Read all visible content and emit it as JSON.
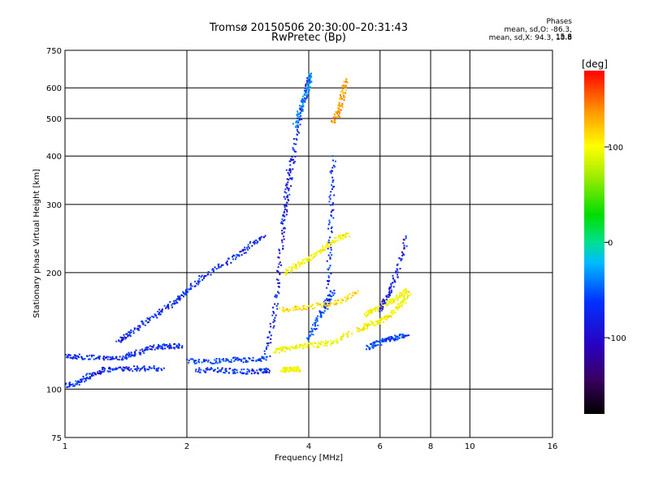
{
  "header": {
    "title": "Tromsø 20150506 20:30:00–20:31:43",
    "subtitle": "RwPretec (Bp)",
    "phases_heading": "Phases",
    "phases_o": "mean, sd,O: -86.3, 15.8",
    "phases_x": "mean, sd,X: 94.3, 18.8"
  },
  "colorbar": {
    "unit": "[deg]",
    "ticks": [
      "100",
      "0",
      "-100"
    ],
    "tick_values": [
      100,
      0,
      -100
    ],
    "range": [
      -180,
      180
    ],
    "colormap": "rainbow (black-purple-blue-cyan-green-yellow-red)"
  },
  "chart_data": {
    "type": "scatter",
    "title": "Tromsø 20150506 20:30:00–20:31:43",
    "subtitle": "RwPretec (Bp)",
    "xlabel": "Frequency [MHz]",
    "ylabel": "Stationary phase Virtual Height [km]",
    "x_scale": "log",
    "y_scale": "log",
    "xlim": [
      1,
      16
    ],
    "ylim": [
      75,
      750
    ],
    "x_ticks": [
      1,
      2,
      4,
      6,
      8,
      10,
      16
    ],
    "x_tick_labels": [
      "1",
      "2",
      "4",
      "6",
      "8",
      "10",
      "16"
    ],
    "y_ticks": [
      75,
      100,
      200,
      300,
      400,
      500,
      600,
      750
    ],
    "y_tick_labels": [
      "75",
      "100",
      "200",
      "300",
      "400",
      "500",
      "600",
      "750"
    ],
    "grid": true,
    "color_by": "phase [deg]",
    "traces": [
      {
        "x": [
          1.0,
          1.1,
          1.25,
          1.4,
          1.5,
          1.65,
          1.8,
          1.95
        ],
        "y": [
          122,
          121,
          120,
          121,
          124,
          128,
          129,
          129
        ],
        "phase": -100
      },
      {
        "x": [
          1.0,
          1.08,
          1.15,
          1.25,
          1.4,
          1.55,
          1.75
        ],
        "y": [
          102,
          104,
          108,
          112,
          113,
          113,
          113
        ],
        "phase": -100
      },
      {
        "x": [
          1.35,
          1.45,
          1.6,
          1.75,
          1.9,
          2.0,
          2.2,
          2.5,
          2.8,
          3.1
        ],
        "y": [
          132,
          140,
          150,
          160,
          170,
          180,
          195,
          212,
          230,
          250
        ],
        "phase": -100
      },
      {
        "x": [
          2.0,
          2.3,
          2.6,
          2.9,
          3.2
        ],
        "y": [
          118,
          118,
          119,
          119,
          120
        ],
        "phase": -90
      },
      {
        "x": [
          2.1,
          2.4,
          2.7,
          3.0,
          3.2
        ],
        "y": [
          112,
          112,
          111,
          111,
          112
        ],
        "phase": -100
      },
      {
        "x": [
          3.15,
          3.3,
          3.4,
          3.5,
          3.6
        ],
        "y": [
          125,
          160,
          220,
          300,
          400
        ],
        "phase": -110
      },
      {
        "x": [
          3.45,
          3.6,
          3.75,
          3.9,
          4.0
        ],
        "y": [
          260,
          360,
          470,
          560,
          640
        ],
        "phase": -105
      },
      {
        "x": [
          3.7,
          3.85,
          4.0,
          4.05
        ],
        "y": [
          480,
          540,
          600,
          650
        ],
        "phase": -60
      },
      {
        "x": [
          4.0,
          4.2,
          4.4,
          4.6
        ],
        "y": [
          135,
          150,
          165,
          180
        ],
        "phase": -90
      },
      {
        "x": [
          4.45,
          4.5,
          4.55,
          4.6
        ],
        "y": [
          160,
          220,
          300,
          400
        ],
        "phase": -100
      },
      {
        "x": [
          3.3,
          3.5,
          3.8,
          4.2,
          4.6,
          5.1
        ],
        "y": [
          125,
          127,
          129,
          130,
          132,
          140
        ],
        "phase": 95
      },
      {
        "x": [
          3.45,
          3.55,
          3.7,
          3.8
        ],
        "y": [
          112,
          112,
          113,
          112
        ],
        "phase": 100
      },
      {
        "x": [
          3.5,
          3.8,
          4.1,
          4.4,
          4.7,
          5.0
        ],
        "y": [
          200,
          210,
          220,
          232,
          245,
          250
        ],
        "phase": 100
      },
      {
        "x": [
          3.4,
          3.8,
          4.3,
          4.8,
          5.3
        ],
        "y": [
          160,
          162,
          165,
          168,
          178
        ],
        "phase": 110
      },
      {
        "x": [
          4.6,
          4.75,
          4.85,
          4.95
        ],
        "y": [
          490,
          520,
          570,
          630
        ],
        "phase": 135
      },
      {
        "x": [
          5.3,
          5.6,
          6.0,
          6.4,
          6.8,
          7.1
        ],
        "y": [
          142,
          146,
          150,
          156,
          166,
          178
        ],
        "phase": 100
      },
      {
        "x": [
          5.5,
          5.8,
          6.2,
          6.6,
          7.0
        ],
        "y": [
          155,
          160,
          166,
          172,
          180
        ],
        "phase": 95
      },
      {
        "x": [
          5.6,
          5.9,
          6.2,
          6.6,
          7.0
        ],
        "y": [
          128,
          131,
          134,
          136,
          138
        ],
        "phase": -90
      },
      {
        "x": [
          6.0,
          6.3,
          6.6,
          7.0
        ],
        "y": [
          160,
          175,
          200,
          250
        ],
        "phase": -110
      }
    ]
  }
}
